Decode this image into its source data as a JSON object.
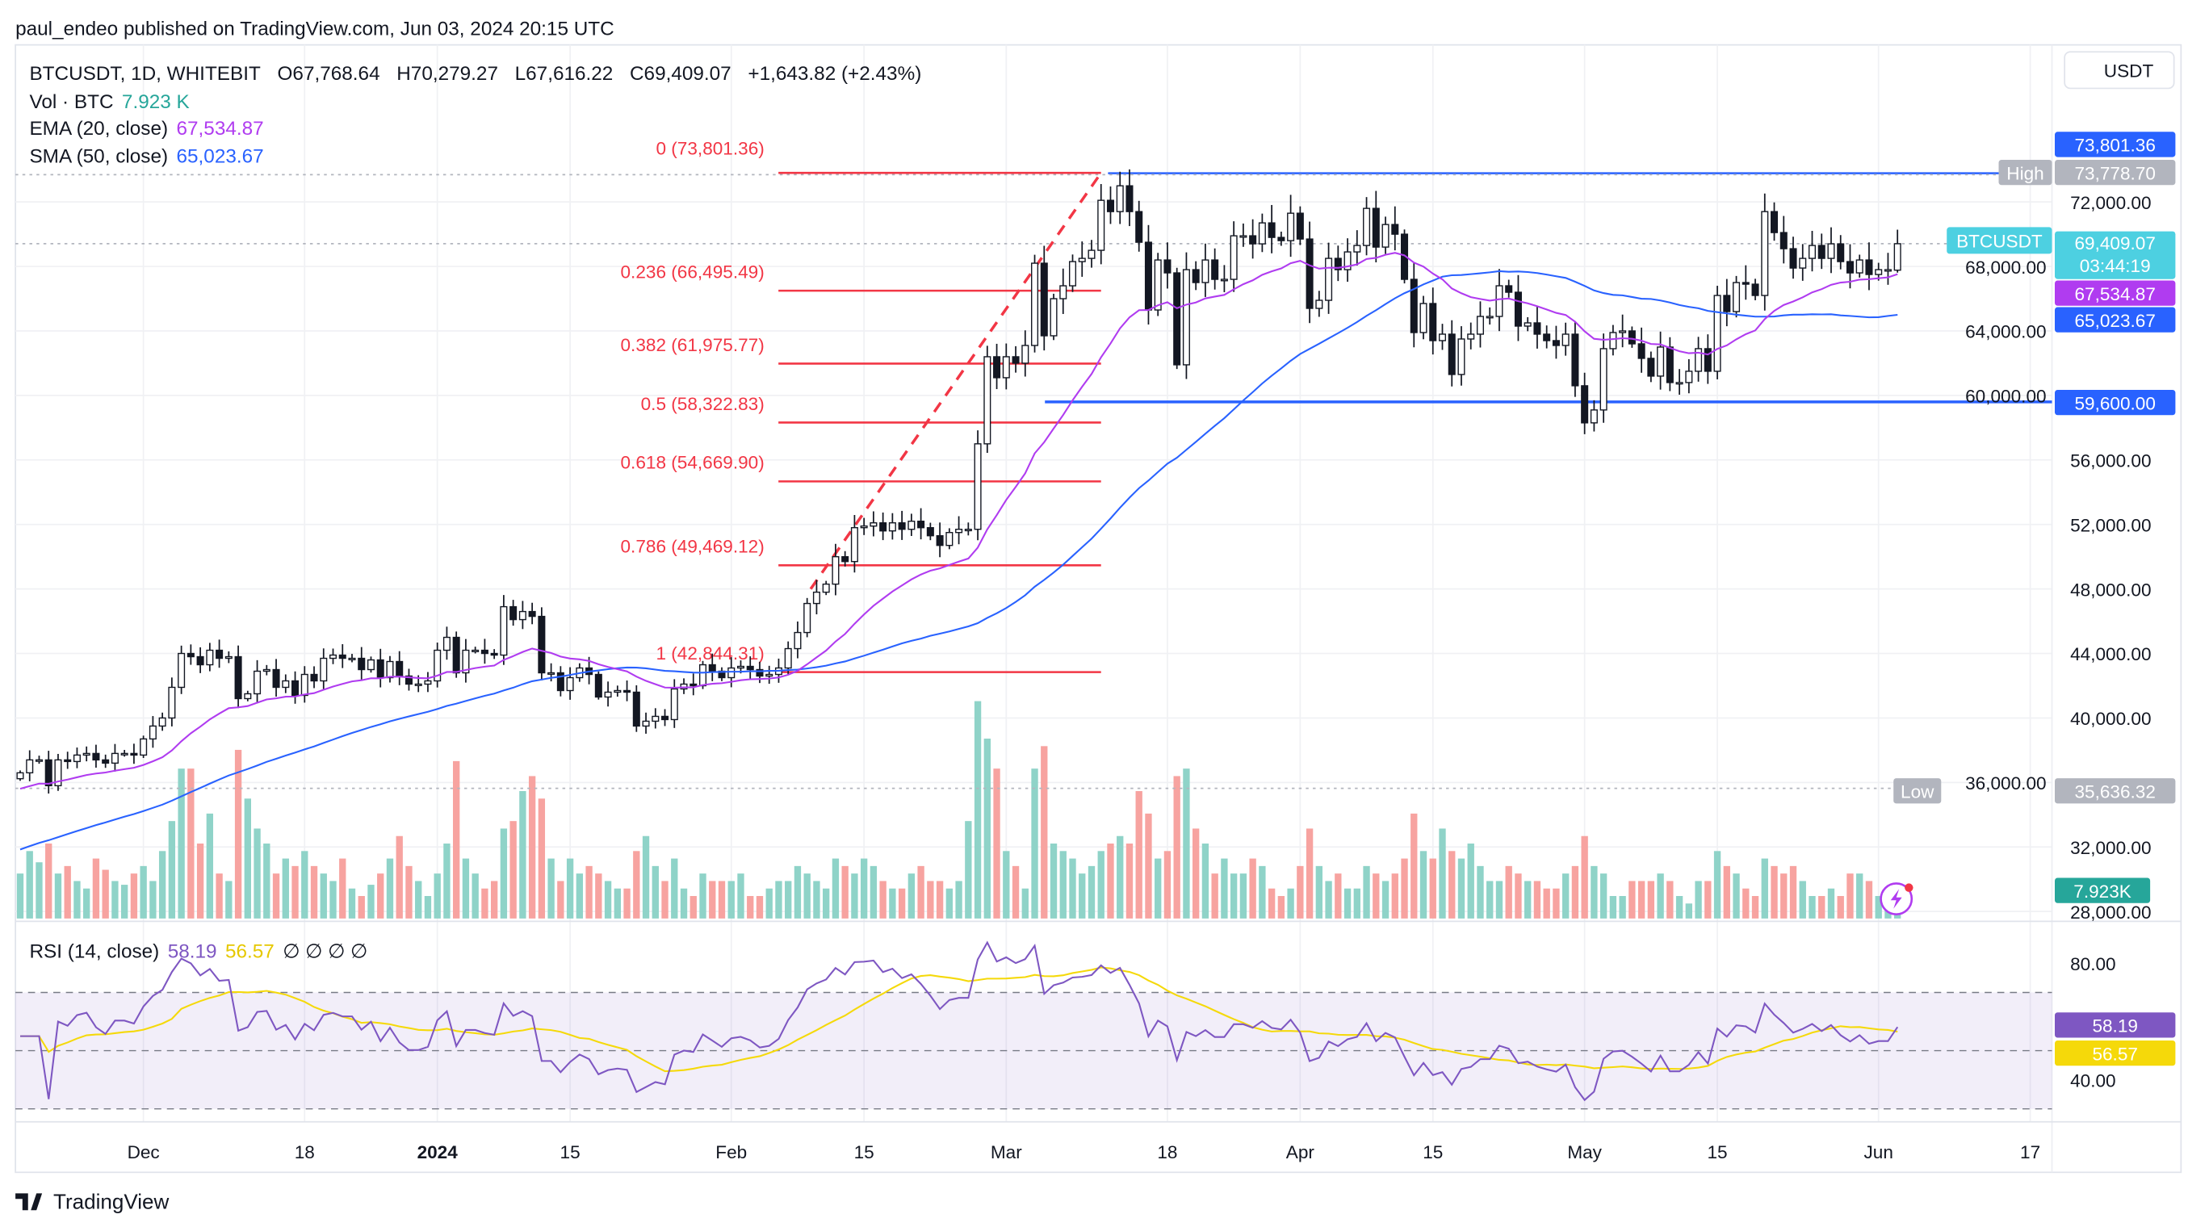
{
  "published": "paul_endeo published on TradingView.com, Jun 03, 2024 20:15 UTC",
  "legend": {
    "symbol": "BTCUSDT, 1D, WHITEBIT",
    "open": "O67,768.64",
    "high": "H70,279.27",
    "low": "L67,616.22",
    "close": "C69,409.07",
    "change": "+1,643.82 (+2.43%)",
    "vol_label": "Vol · BTC",
    "vol_value": "7.923 K",
    "ema_label": "EMA (20, close)",
    "ema_value": "67,534.87",
    "sma_label": "SMA (50, close)",
    "sma_value": "65,023.67"
  },
  "currency_button": "USDT",
  "price_tags": {
    "fib0": "73,801.36",
    "high_label": "High",
    "high": "73,778.70",
    "symbol": "BTCUSDT",
    "last": "69,409.07",
    "countdown": "03:44:19",
    "ema": "67,534.87",
    "sma": "65,023.67",
    "support": "59,600.00",
    "low_label": "Low",
    "low": "35,636.32",
    "volume": "7.923K"
  },
  "rsi": {
    "label": "RSI (14, close)",
    "value": "58.19",
    "ma": "56.57",
    "extra": "∅ ∅ ∅ ∅",
    "axis": [
      "80.00",
      "40.00"
    ]
  },
  "fib_levels": [
    {
      "label": "0 (73,801.36)",
      "price": 73801.36
    },
    {
      "label": "0.236 (66,495.49)",
      "price": 66495.49
    },
    {
      "label": "0.382 (61,975.77)",
      "price": 61975.77
    },
    {
      "label": "0.5 (58,322.83)",
      "price": 58322.83
    },
    {
      "label": "0.618 (54,669.90)",
      "price": 54669.9
    },
    {
      "label": "0.786 (49,469.12)",
      "price": 49469.12
    },
    {
      "label": "1 (42,844.31)",
      "price": 42844.31
    }
  ],
  "horizontal_lines": {
    "high": 73778.7,
    "support": 59600.0,
    "low": 35636.32
  },
  "brand": "TradingView",
  "colors": {
    "up": "#26a69a",
    "down": "#ef5350",
    "vol_up": "#8fd3c8",
    "vol_down": "#f7a3a0",
    "ema": "#b03cf0",
    "sma": "#2962ff",
    "fib": "#f23645",
    "rsi": "#7e57c2",
    "rsi_ma": "#f5d90a",
    "tag_blue": "#2962ff",
    "tag_cyan": "#4dd0e1",
    "tag_gray": "#b2b5be",
    "tag_teal": "#26a69a"
  },
  "chart_data": {
    "type": "candlestick",
    "start_date": "2023-11-18",
    "price_axis": [
      "72,000.00",
      "68,000.00",
      "64,000.00",
      "60,000.00",
      "56,000.00",
      "52,000.00",
      "48,000.00",
      "44,000.00",
      "40,000.00",
      "36,000.00",
      "32,000.00",
      "28,000.00"
    ],
    "price_axis_values": [
      72000,
      68000,
      64000,
      60000,
      56000,
      52000,
      48000,
      44000,
      40000,
      36000,
      32000,
      28000
    ],
    "time_axis": [
      {
        "label": "Dec",
        "date": "2023-12-01"
      },
      {
        "label": "18",
        "date": "2023-12-18"
      },
      {
        "label": "2024",
        "date": "2024-01-01",
        "bold": true
      },
      {
        "label": "15",
        "date": "2024-01-15"
      },
      {
        "label": "Feb",
        "date": "2024-02-01"
      },
      {
        "label": "15",
        "date": "2024-02-15"
      },
      {
        "label": "Mar",
        "date": "2024-03-01"
      },
      {
        "label": "18",
        "date": "2024-03-18"
      },
      {
        "label": "Apr",
        "date": "2024-04-01"
      },
      {
        "label": "15",
        "date": "2024-04-15"
      },
      {
        "label": "May",
        "date": "2024-05-01"
      },
      {
        "label": "15",
        "date": "2024-05-15"
      },
      {
        "label": "Jun",
        "date": "2024-06-01"
      },
      {
        "label": "17",
        "date": "2024-06-17"
      }
    ],
    "close_k": [
      36.6,
      37.4,
      37.4,
      35.8,
      37.4,
      37.3,
      37.7,
      37.8,
      37.4,
      37.2,
      37.8,
      37.8,
      37.7,
      38.7,
      39.5,
      40.0,
      41.9,
      44.0,
      43.8,
      43.3,
      44.2,
      43.7,
      43.8,
      41.2,
      41.5,
      42.9,
      43.0,
      41.9,
      42.3,
      41.4,
      42.7,
      42.3,
      43.7,
      43.9,
      43.7,
      43.7,
      43.0,
      43.6,
      42.5,
      43.5,
      42.6,
      42.1,
      42.1,
      42.3,
      44.2,
      45.0,
      42.8,
      44.2,
      44.2,
      44.0,
      43.9,
      46.9,
      46.1,
      46.6,
      46.3,
      42.8,
      42.8,
      41.7,
      42.5,
      43.1,
      42.7,
      41.3,
      41.6,
      41.7,
      41.6,
      39.5,
      39.8,
      40.1,
      39.9,
      41.8,
      42.1,
      42.0,
      43.3,
      42.9,
      42.5,
      43.1,
      43.2,
      43.0,
      42.6,
      42.7,
      43.1,
      44.3,
      45.3,
      47.1,
      47.8,
      48.3,
      50.0,
      49.7,
      51.8,
      51.9,
      52.1,
      51.6,
      52.1,
      51.7,
      52.2,
      51.8,
      51.3,
      50.7,
      51.5,
      51.7,
      51.7,
      57.0,
      62.4,
      61.1,
      62.4,
      62.0,
      63.1,
      68.2,
      63.7,
      66.0,
      66.8,
      68.3,
      68.5,
      69.0,
      72.1,
      71.4,
      73.0,
      71.4,
      69.5,
      65.3,
      68.4,
      67.6,
      61.9,
      67.8,
      67.0,
      68.4,
      67.2,
      67.2,
      69.9,
      69.9,
      69.4,
      70.7,
      69.8,
      69.6,
      71.3,
      69.7,
      65.4,
      65.9,
      68.5,
      67.8,
      68.9,
      69.3,
      71.6,
      69.2,
      70.6,
      70.0,
      67.2,
      63.9,
      65.7,
      63.4,
      63.8,
      61.3,
      63.5,
      63.8,
      64.9,
      64.9,
      66.8,
      66.4,
      64.3,
      64.5,
      63.8,
      63.4,
      63.1,
      63.8,
      60.6,
      58.3,
      59.1,
      62.9,
      63.9,
      64.0,
      63.2,
      62.3,
      61.2,
      63.0,
      60.8,
      60.8,
      61.5,
      62.9,
      61.5,
      66.2,
      65.2,
      67.0,
      66.9,
      66.2,
      71.4,
      70.1,
      69.1,
      67.9,
      68.5,
      69.3,
      68.5,
      69.4,
      68.3,
      67.6,
      68.4,
      67.5,
      67.8,
      67.8,
      69.409
    ],
    "volume_k": [
      12,
      18,
      15,
      20,
      12,
      14,
      10,
      8,
      16,
      13,
      10,
      9,
      12,
      14,
      10,
      18,
      26,
      40,
      40,
      20,
      28,
      12,
      10,
      45,
      32,
      24,
      20,
      12,
      16,
      14,
      18,
      14,
      12,
      10,
      16,
      8,
      6,
      9,
      12,
      16,
      22,
      14,
      10,
      6,
      12,
      20,
      42,
      16,
      12,
      8,
      10,
      24,
      26,
      34,
      38,
      32,
      16,
      10,
      16,
      12,
      14,
      12,
      10,
      8,
      8,
      18,
      22,
      14,
      10,
      16,
      8,
      6,
      12,
      10,
      10,
      10,
      12,
      6,
      6,
      8,
      10,
      10,
      14,
      12,
      10,
      8,
      16,
      14,
      12,
      16,
      14,
      10,
      8,
      8,
      12,
      14,
      10,
      10,
      8,
      10,
      26,
      58,
      48,
      40,
      18,
      14,
      8,
      40,
      46,
      20,
      18,
      16,
      12,
      14,
      18,
      20,
      22,
      20,
      34,
      28,
      16,
      18,
      38,
      40,
      24,
      20,
      12,
      16,
      12,
      12,
      16,
      14,
      8,
      6,
      8,
      14,
      24,
      14,
      10,
      12,
      8,
      8,
      14,
      12,
      10,
      12,
      16,
      28,
      18,
      16,
      24,
      18,
      16,
      20,
      14,
      10,
      10,
      14,
      12,
      10,
      10,
      8,
      8,
      12,
      14,
      22,
      14,
      12,
      6,
      6,
      10,
      10,
      10,
      12,
      10,
      6,
      4,
      10,
      10,
      18,
      14,
      12,
      8,
      6,
      16,
      14,
      12,
      14,
      10,
      6,
      6,
      8,
      6,
      12,
      12,
      10,
      6,
      6,
      7.923
    ],
    "last_candle": {
      "open": 67768.64,
      "high": 70279.27,
      "low": 67616.22,
      "close": 69409.07
    },
    "indicators": [
      "EMA 20",
      "SMA 50",
      "RSI 14",
      "RSI MA 14"
    ],
    "rsi_levels": [
      70,
      50,
      30
    ]
  }
}
